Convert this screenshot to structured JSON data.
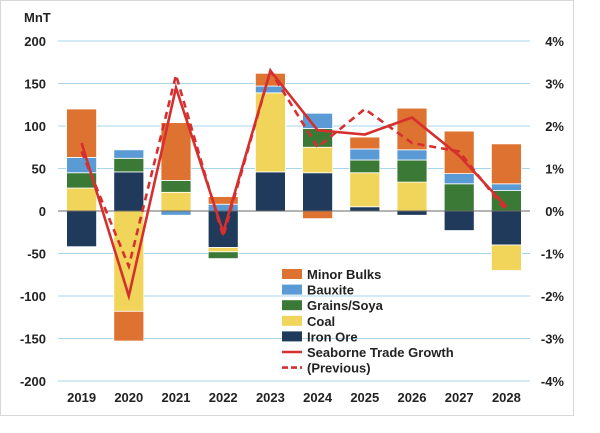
{
  "chart_data": {
    "type": "bar",
    "stacked": true,
    "categories": [
      "2019",
      "2020",
      "2021",
      "2022",
      "2023",
      "2024",
      "2025",
      "2026",
      "2027",
      "2028"
    ],
    "ylabel": "MnT",
    "ylim": [
      -200,
      200
    ],
    "yticks": [
      "200",
      "150",
      "100",
      "50",
      "0",
      "-50",
      "-100",
      "-150",
      "-200"
    ],
    "y2lim": [
      -4,
      4
    ],
    "y2ticks": [
      "4%",
      "3%",
      "2%",
      "1%",
      "0%",
      "-1%",
      "-2%",
      "-3%",
      "-4%"
    ],
    "grid": true,
    "legend_position": "bottom-center",
    "series": [
      {
        "name": "Iron Ore",
        "color": "#1f3a5a",
        "values": [
          -42,
          46,
          0,
          -43,
          46,
          45,
          5,
          -5,
          -23,
          -40
        ]
      },
      {
        "name": "Coal",
        "color": "#f0d55a",
        "values": [
          27,
          -118,
          22,
          -5,
          93,
          30,
          40,
          34,
          0,
          -30
        ]
      },
      {
        "name": "Grains/Soya",
        "color": "#3a7a36",
        "values": [
          18,
          16,
          14,
          -8,
          0,
          22,
          15,
          26,
          32,
          24
        ]
      },
      {
        "name": "Bauxite",
        "color": "#5b9bd5",
        "values": [
          18,
          10,
          -5,
          8,
          8,
          18,
          13,
          12,
          12,
          8
        ]
      },
      {
        "name": "Minor Bulks",
        "color": "#de7230",
        "values": [
          57,
          -35,
          68,
          9,
          15,
          -9,
          14,
          49,
          50,
          47
        ]
      }
    ],
    "lines": [
      {
        "name": "Seaborne Trade Growth",
        "color": "#d62f2f",
        "style": "solid",
        "values": [
          1.6,
          -2.0,
          2.9,
          -0.5,
          3.3,
          1.9,
          1.8,
          2.2,
          1.3,
          0.1
        ]
      },
      {
        "name": "(Previous)",
        "color": "#d62f2f",
        "style": "dashed",
        "values": [
          1.4,
          -1.3,
          3.2,
          -0.6,
          3.3,
          1.5,
          2.4,
          1.6,
          1.4,
          0.0
        ]
      }
    ]
  }
}
